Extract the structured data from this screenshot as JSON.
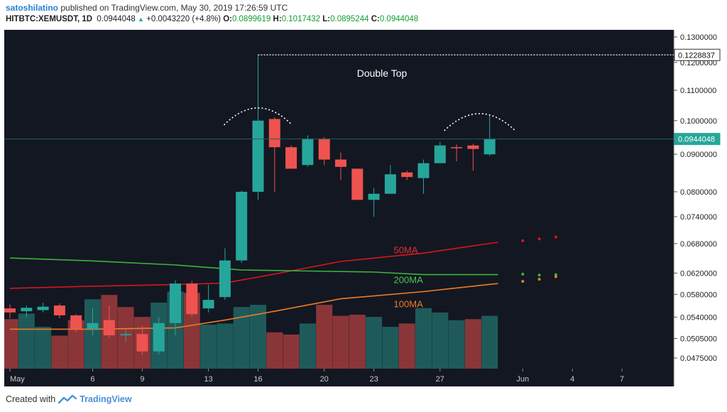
{
  "header": {
    "user": "satoshilatino",
    "published": "published on TradingView.com, May 30, 2019 17:26:59 UTC",
    "symbol": "HITBTC:XEMUSDT, 1D",
    "last": "0.0944048",
    "change": "+0.0043220 (+4.8%)",
    "o_label": "O:",
    "o": "0.0899619",
    "h_label": "H:",
    "h": "0.1017432",
    "l_label": "L:",
    "l": "0.0895244",
    "c_label": "C:",
    "c": "0.0944048"
  },
  "footer": {
    "created": "Created with",
    "brand": "TradingView"
  },
  "colors": {
    "bg": "#131722",
    "bull": "#26a69a",
    "bear": "#ef5350",
    "vol_bull": "#1f5a5a",
    "vol_bear": "#8a3638",
    "ma50": "#d6171d",
    "ma200": "#3cb33c",
    "ma100": "#f07b21",
    "price_line": "#1f5f5f"
  },
  "chart_data": {
    "type": "candlestick",
    "title": "Double Top",
    "price_axis": [
      "0.1300000",
      "0.1200000",
      "0.1100000",
      "0.1000000",
      "0.0900000",
      "0.0800000",
      "0.0740000",
      "0.0680000",
      "0.0620000",
      "0.0580000",
      "0.0540000",
      "0.0505000",
      "0.0475000"
    ],
    "price_axis_values": [
      0.13,
      0.12,
      0.11,
      0.1,
      0.09,
      0.08,
      0.074,
      0.068,
      0.062,
      0.058,
      0.054,
      0.0505,
      0.0475
    ],
    "date_axis": [
      "May",
      "6",
      "9",
      "13",
      "16",
      "20",
      "23",
      "27",
      "Jun",
      "4",
      "7"
    ],
    "date_axis_day_index": [
      0,
      5,
      8,
      12,
      15,
      19,
      22,
      26,
      31,
      34,
      37
    ],
    "last_price_label": "0.0944048",
    "last_price": 0.0944048,
    "peak_label": "0.1228837",
    "peak_price": 0.1228837,
    "annotation": "Double Top",
    "ma_labels": {
      "ma50": "50MA",
      "ma200": "200MA",
      "ma100": "100MA"
    },
    "candles": [
      {
        "d": 0,
        "o": 0.0555,
        "h": 0.0562,
        "l": 0.0538,
        "c": 0.0548
      },
      {
        "d": 1,
        "o": 0.055,
        "h": 0.056,
        "l": 0.054,
        "c": 0.0556
      },
      {
        "d": 2,
        "o": 0.0552,
        "h": 0.0565,
        "l": 0.0548,
        "c": 0.0558
      },
      {
        "d": 3,
        "o": 0.056,
        "h": 0.0564,
        "l": 0.0538,
        "c": 0.0543
      },
      {
        "d": 4,
        "o": 0.0543,
        "h": 0.0545,
        "l": 0.0515,
        "c": 0.052
      },
      {
        "d": 5,
        "o": 0.052,
        "h": 0.0555,
        "l": 0.051,
        "c": 0.053
      },
      {
        "d": 6,
        "o": 0.0535,
        "h": 0.056,
        "l": 0.0505,
        "c": 0.051
      },
      {
        "d": 7,
        "o": 0.051,
        "h": 0.052,
        "l": 0.05,
        "c": 0.0512
      },
      {
        "d": 8,
        "o": 0.0512,
        "h": 0.0525,
        "l": 0.048,
        "c": 0.0485
      },
      {
        "d": 9,
        "o": 0.0485,
        "h": 0.054,
        "l": 0.048,
        "c": 0.053
      },
      {
        "d": 10,
        "o": 0.053,
        "h": 0.0606,
        "l": 0.051,
        "c": 0.06
      },
      {
        "d": 11,
        "o": 0.06,
        "h": 0.0605,
        "l": 0.054,
        "c": 0.0545
      },
      {
        "d": 12,
        "o": 0.0555,
        "h": 0.0598,
        "l": 0.0548,
        "c": 0.057
      },
      {
        "d": 13,
        "o": 0.0575,
        "h": 0.067,
        "l": 0.057,
        "c": 0.0645
      },
      {
        "d": 14,
        "o": 0.0645,
        "h": 0.0803,
        "l": 0.064,
        "c": 0.08
      },
      {
        "d": 15,
        "o": 0.08,
        "h": 0.1228837,
        "l": 0.078,
        "c": 0.1
      },
      {
        "d": 16,
        "o": 0.1005,
        "h": 0.101,
        "l": 0.08,
        "c": 0.092
      },
      {
        "d": 17,
        "o": 0.092,
        "h": 0.0925,
        "l": 0.086,
        "c": 0.086
      },
      {
        "d": 18,
        "o": 0.087,
        "h": 0.0955,
        "l": 0.0865,
        "c": 0.0945
      },
      {
        "d": 19,
        "o": 0.0945,
        "h": 0.095,
        "l": 0.087,
        "c": 0.0885
      },
      {
        "d": 20,
        "o": 0.0885,
        "h": 0.0905,
        "l": 0.083,
        "c": 0.0865
      },
      {
        "d": 21,
        "o": 0.086,
        "h": 0.086,
        "l": 0.078,
        "c": 0.078
      },
      {
        "d": 22,
        "o": 0.078,
        "h": 0.081,
        "l": 0.074,
        "c": 0.0795
      },
      {
        "d": 23,
        "o": 0.0795,
        "h": 0.087,
        "l": 0.0795,
        "c": 0.0845
      },
      {
        "d": 24,
        "o": 0.085,
        "h": 0.0855,
        "l": 0.083,
        "c": 0.0838
      },
      {
        "d": 25,
        "o": 0.0835,
        "h": 0.0885,
        "l": 0.0795,
        "c": 0.0875
      },
      {
        "d": 26,
        "o": 0.0875,
        "h": 0.0935,
        "l": 0.0875,
        "c": 0.0925
      },
      {
        "d": 27,
        "o": 0.092,
        "h": 0.0928,
        "l": 0.088,
        "c": 0.0918
      },
      {
        "d": 28,
        "o": 0.0925,
        "h": 0.093,
        "l": 0.0855,
        "c": 0.0915
      },
      {
        "d": 29,
        "o": 0.0899619,
        "h": 0.1017432,
        "l": 0.0895244,
        "c": 0.0944048
      }
    ],
    "volume": [
      {
        "d": 0,
        "v": 0.45,
        "up": false
      },
      {
        "d": 1,
        "v": 0.5,
        "up": true
      },
      {
        "d": 2,
        "v": 0.38,
        "up": true
      },
      {
        "d": 3,
        "v": 0.3,
        "up": false
      },
      {
        "d": 4,
        "v": 0.44,
        "up": false
      },
      {
        "d": 5,
        "v": 0.63,
        "up": true
      },
      {
        "d": 6,
        "v": 0.67,
        "up": false
      },
      {
        "d": 7,
        "v": 0.56,
        "up": false
      },
      {
        "d": 8,
        "v": 0.47,
        "up": false
      },
      {
        "d": 9,
        "v": 0.6,
        "up": true
      },
      {
        "d": 10,
        "v": 0.7,
        "up": true
      },
      {
        "d": 11,
        "v": 0.69,
        "up": false
      },
      {
        "d": 12,
        "v": 0.4,
        "up": true
      },
      {
        "d": 13,
        "v": 0.41,
        "up": true
      },
      {
        "d": 14,
        "v": 0.56,
        "up": true
      },
      {
        "d": 15,
        "v": 0.58,
        "up": true
      },
      {
        "d": 16,
        "v": 0.33,
        "up": false
      },
      {
        "d": 17,
        "v": 0.31,
        "up": false
      },
      {
        "d": 18,
        "v": 0.41,
        "up": true
      },
      {
        "d": 19,
        "v": 0.58,
        "up": false
      },
      {
        "d": 20,
        "v": 0.48,
        "up": false
      },
      {
        "d": 21,
        "v": 0.49,
        "up": false
      },
      {
        "d": 22,
        "v": 0.47,
        "up": true
      },
      {
        "d": 23,
        "v": 0.38,
        "up": true
      },
      {
        "d": 24,
        "v": 0.41,
        "up": false
      },
      {
        "d": 25,
        "v": 0.55,
        "up": true
      },
      {
        "d": 26,
        "v": 0.51,
        "up": true
      },
      {
        "d": 27,
        "v": 0.44,
        "up": true
      },
      {
        "d": 28,
        "v": 0.45,
        "up": false
      },
      {
        "d": 29,
        "v": 0.48,
        "up": true
      }
    ],
    "ma50": [
      [
        0,
        0.0591
      ],
      [
        5,
        0.0595
      ],
      [
        10,
        0.0598
      ],
      [
        13,
        0.0601
      ],
      [
        16,
        0.0618
      ],
      [
        20,
        0.0643
      ],
      [
        25,
        0.066
      ],
      [
        29.5,
        0.0683
      ]
    ],
    "ma200": [
      [
        0,
        0.065
      ],
      [
        5,
        0.0644
      ],
      [
        10,
        0.0636
      ],
      [
        14,
        0.0626
      ],
      [
        18,
        0.0624
      ],
      [
        22,
        0.0622
      ],
      [
        25,
        0.0617
      ],
      [
        29.5,
        0.0617
      ]
    ],
    "ma100": [
      [
        0,
        0.052
      ],
      [
        5,
        0.052
      ],
      [
        10,
        0.0522
      ],
      [
        13,
        0.0535
      ],
      [
        16,
        0.055
      ],
      [
        20,
        0.0572
      ],
      [
        25,
        0.0585
      ],
      [
        29.5,
        0.06
      ]
    ],
    "ma_dots": {
      "ma50": [
        [
          31,
          0.0686
        ],
        [
          32,
          0.069
        ],
        [
          33,
          0.0694
        ]
      ],
      "ma200": [
        [
          31,
          0.0618
        ],
        [
          32,
          0.0616
        ],
        [
          33,
          0.0617
        ]
      ],
      "ma100": [
        [
          31,
          0.0604
        ],
        [
          32,
          0.0608
        ],
        [
          33,
          0.0613
        ]
      ]
    }
  }
}
